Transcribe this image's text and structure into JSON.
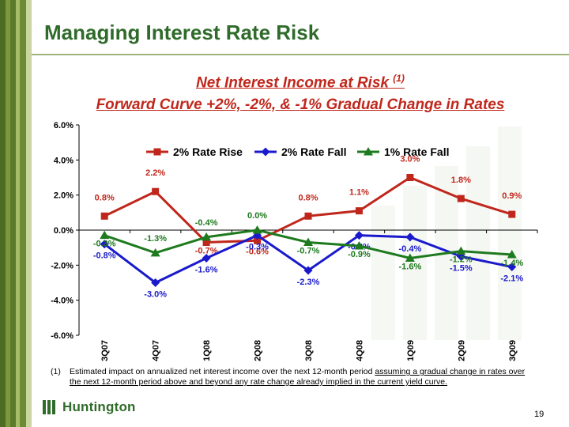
{
  "slide": {
    "title": "Managing Interest Rate Risk",
    "subtitle_main": "Net Interest Income at Risk",
    "subtitle_ref": "(1)",
    "subtitle_2": "Forward Curve +2%, -2%, & -1% Gradual Change in Rates",
    "footnote_num": "(1)",
    "footnote_plain": "Estimated impact on annualized net interest income over the next 12-month period ",
    "footnote_underlined": "assuming a gradual change in rates over the next 12-month period above and beyond any rate change already implied in the current yield curve.",
    "logo_text": "Huntington",
    "page_number": "19",
    "accent_green": "#2f6b2a",
    "accent_red": "#c0271c"
  },
  "chart_data": {
    "type": "line",
    "title": "",
    "xlabel": "",
    "ylabel": "",
    "categories": [
      "3Q07",
      "4Q07",
      "1Q08",
      "2Q08",
      "3Q08",
      "4Q08",
      "1Q09",
      "2Q09",
      "3Q09"
    ],
    "ylim": [
      -6.0,
      6.0
    ],
    "yticks": [
      6.0,
      4.0,
      2.0,
      0.0,
      -2.0,
      -4.0,
      -6.0
    ],
    "ytick_labels": [
      "6.0%",
      "4.0%",
      "2.0%",
      "0.0%",
      "-2.0%",
      "-4.0%",
      "-6.0%"
    ],
    "legend_position": "top",
    "grid": false,
    "series": [
      {
        "name": "2% Rate Rise",
        "color": "#c0271c",
        "marker": "square",
        "values": [
          0.8,
          2.2,
          -0.7,
          -0.6,
          0.8,
          1.1,
          3.0,
          1.8,
          0.9
        ],
        "labels": [
          "0.8%",
          "2.2%",
          "-0.7%",
          "-0.6%",
          "0.8%",
          "1.1%",
          "3.0%",
          "1.8%",
          "0.9%"
        ]
      },
      {
        "name": "2% Rate Fall",
        "color": "#1a1acc",
        "marker": "diamond",
        "values": [
          -0.8,
          -3.0,
          -1.6,
          -0.3,
          -2.3,
          -0.3,
          -0.4,
          -1.5,
          -2.1
        ],
        "labels": [
          "-0.8%",
          "-3.0%",
          "-1.6%",
          "-0.3%",
          "-2.3%",
          "-0.3%",
          "-0.4%",
          "-1.5%",
          "-2.1%"
        ]
      },
      {
        "name": "1% Rate Fall",
        "color": "#1e7a1e",
        "marker": "triangle",
        "values": [
          -0.3,
          -1.3,
          -0.4,
          0.0,
          -0.7,
          -0.9,
          -1.6,
          -1.2,
          -1.4
        ],
        "labels": [
          "-0.3%",
          "-1.3%",
          "-0.4%",
          "0.0%",
          "-0.7%",
          "-0.9%",
          "-1.6%",
          "-1.2%",
          "-1.4%"
        ]
      }
    ]
  }
}
